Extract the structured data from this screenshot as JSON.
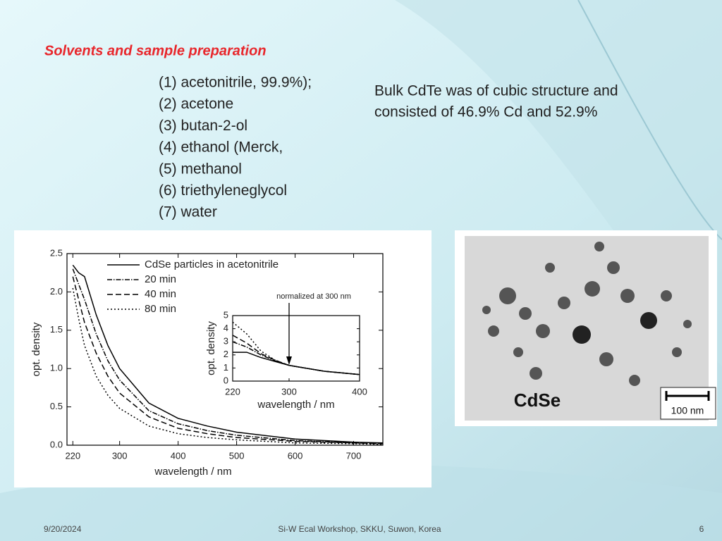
{
  "slide": {
    "title": "Solvents and sample preparation",
    "solvents": [
      "(1) acetonitrile, 99.9%);",
      "(2)  acetone",
      "(3) butan-2-ol",
      "(4) ethanol (Merck,",
      "(5) methanol",
      "(6) triethyleneglycol",
      "(7) water"
    ],
    "note": [
      "Bulk CdTe was of cubic structure and",
      "consisted of 46.9% Cd and 52.9%"
    ],
    "micrograph": {
      "label": "CdSe",
      "scale": "100 nm"
    },
    "footer": {
      "date": "9/20/2024",
      "center": "Si-W Ecal Workshop, SKKU, Suwon, Korea",
      "page": "6"
    }
  },
  "chart_data": [
    {
      "type": "line",
      "x_label": "wavelength / nm",
      "y_label": "opt. density",
      "x": [
        220,
        230,
        240,
        260,
        280,
        300,
        350,
        400,
        450,
        500,
        600,
        700,
        750
      ],
      "xlim": [
        210,
        750
      ],
      "ylim": [
        0,
        2.5
      ],
      "xticks": [
        220,
        300,
        400,
        500,
        600,
        700
      ],
      "yticks": [
        {
          "value": 0,
          "label": "0.0"
        },
        0.5,
        {
          "value": 1,
          "label": "1.0"
        },
        1.5,
        {
          "value": 2,
          "label": "2.0"
        },
        2.5
      ],
      "series": [
        {
          "name": "CdSe particles in acetonitrile",
          "color": "#000000",
          "dash": "solid",
          "values": [
            2.35,
            2.25,
            2.2,
            1.7,
            1.3,
            1.0,
            0.55,
            0.35,
            0.25,
            0.17,
            0.08,
            0.04,
            0.03
          ]
        },
        {
          "name": "20 min",
          "color": "#000000",
          "dash": "dashdot",
          "values": [
            2.3,
            2.1,
            1.9,
            1.45,
            1.1,
            0.85,
            0.45,
            0.28,
            0.19,
            0.13,
            0.06,
            0.03,
            0.02
          ]
        },
        {
          "name": "40 min",
          "color": "#000000",
          "dash": "dash",
          "values": [
            2.2,
            1.9,
            1.6,
            1.2,
            0.9,
            0.68,
            0.37,
            0.22,
            0.15,
            0.1,
            0.05,
            0.03,
            0.02
          ]
        },
        {
          "name": "80 min",
          "color": "#000000",
          "dash": "dot",
          "values": [
            2.05,
            1.65,
            1.3,
            0.9,
            0.65,
            0.48,
            0.25,
            0.15,
            0.1,
            0.07,
            0.03,
            0.02,
            0.01
          ]
        }
      ]
    },
    {
      "type": "line",
      "x_label": "wavelength / nm",
      "y_label": "opt. density",
      "annotation": "normalized at 300 nm",
      "x": [
        220,
        240,
        260,
        280,
        300,
        350,
        400
      ],
      "xlim": [
        220,
        400
      ],
      "ylim": [
        0,
        5
      ],
      "xticks": [
        220,
        300,
        400
      ],
      "yticks": [
        0,
        1,
        2,
        3,
        4,
        5
      ],
      "series": [
        {
          "color": "#000000",
          "dash": "solid",
          "values": [
            2.2,
            2.2,
            1.8,
            1.5,
            1.2,
            0.75,
            0.5
          ]
        },
        {
          "color": "#000000",
          "dash": "dashdot",
          "values": [
            3.0,
            2.6,
            2.0,
            1.55,
            1.2,
            0.75,
            0.5
          ]
        },
        {
          "color": "#000000",
          "dash": "dash",
          "values": [
            3.5,
            2.9,
            2.1,
            1.6,
            1.2,
            0.75,
            0.5
          ]
        },
        {
          "color": "#000000",
          "dash": "dot",
          "values": [
            4.5,
            3.6,
            2.3,
            1.6,
            1.2,
            0.75,
            0.5
          ]
        }
      ]
    }
  ]
}
